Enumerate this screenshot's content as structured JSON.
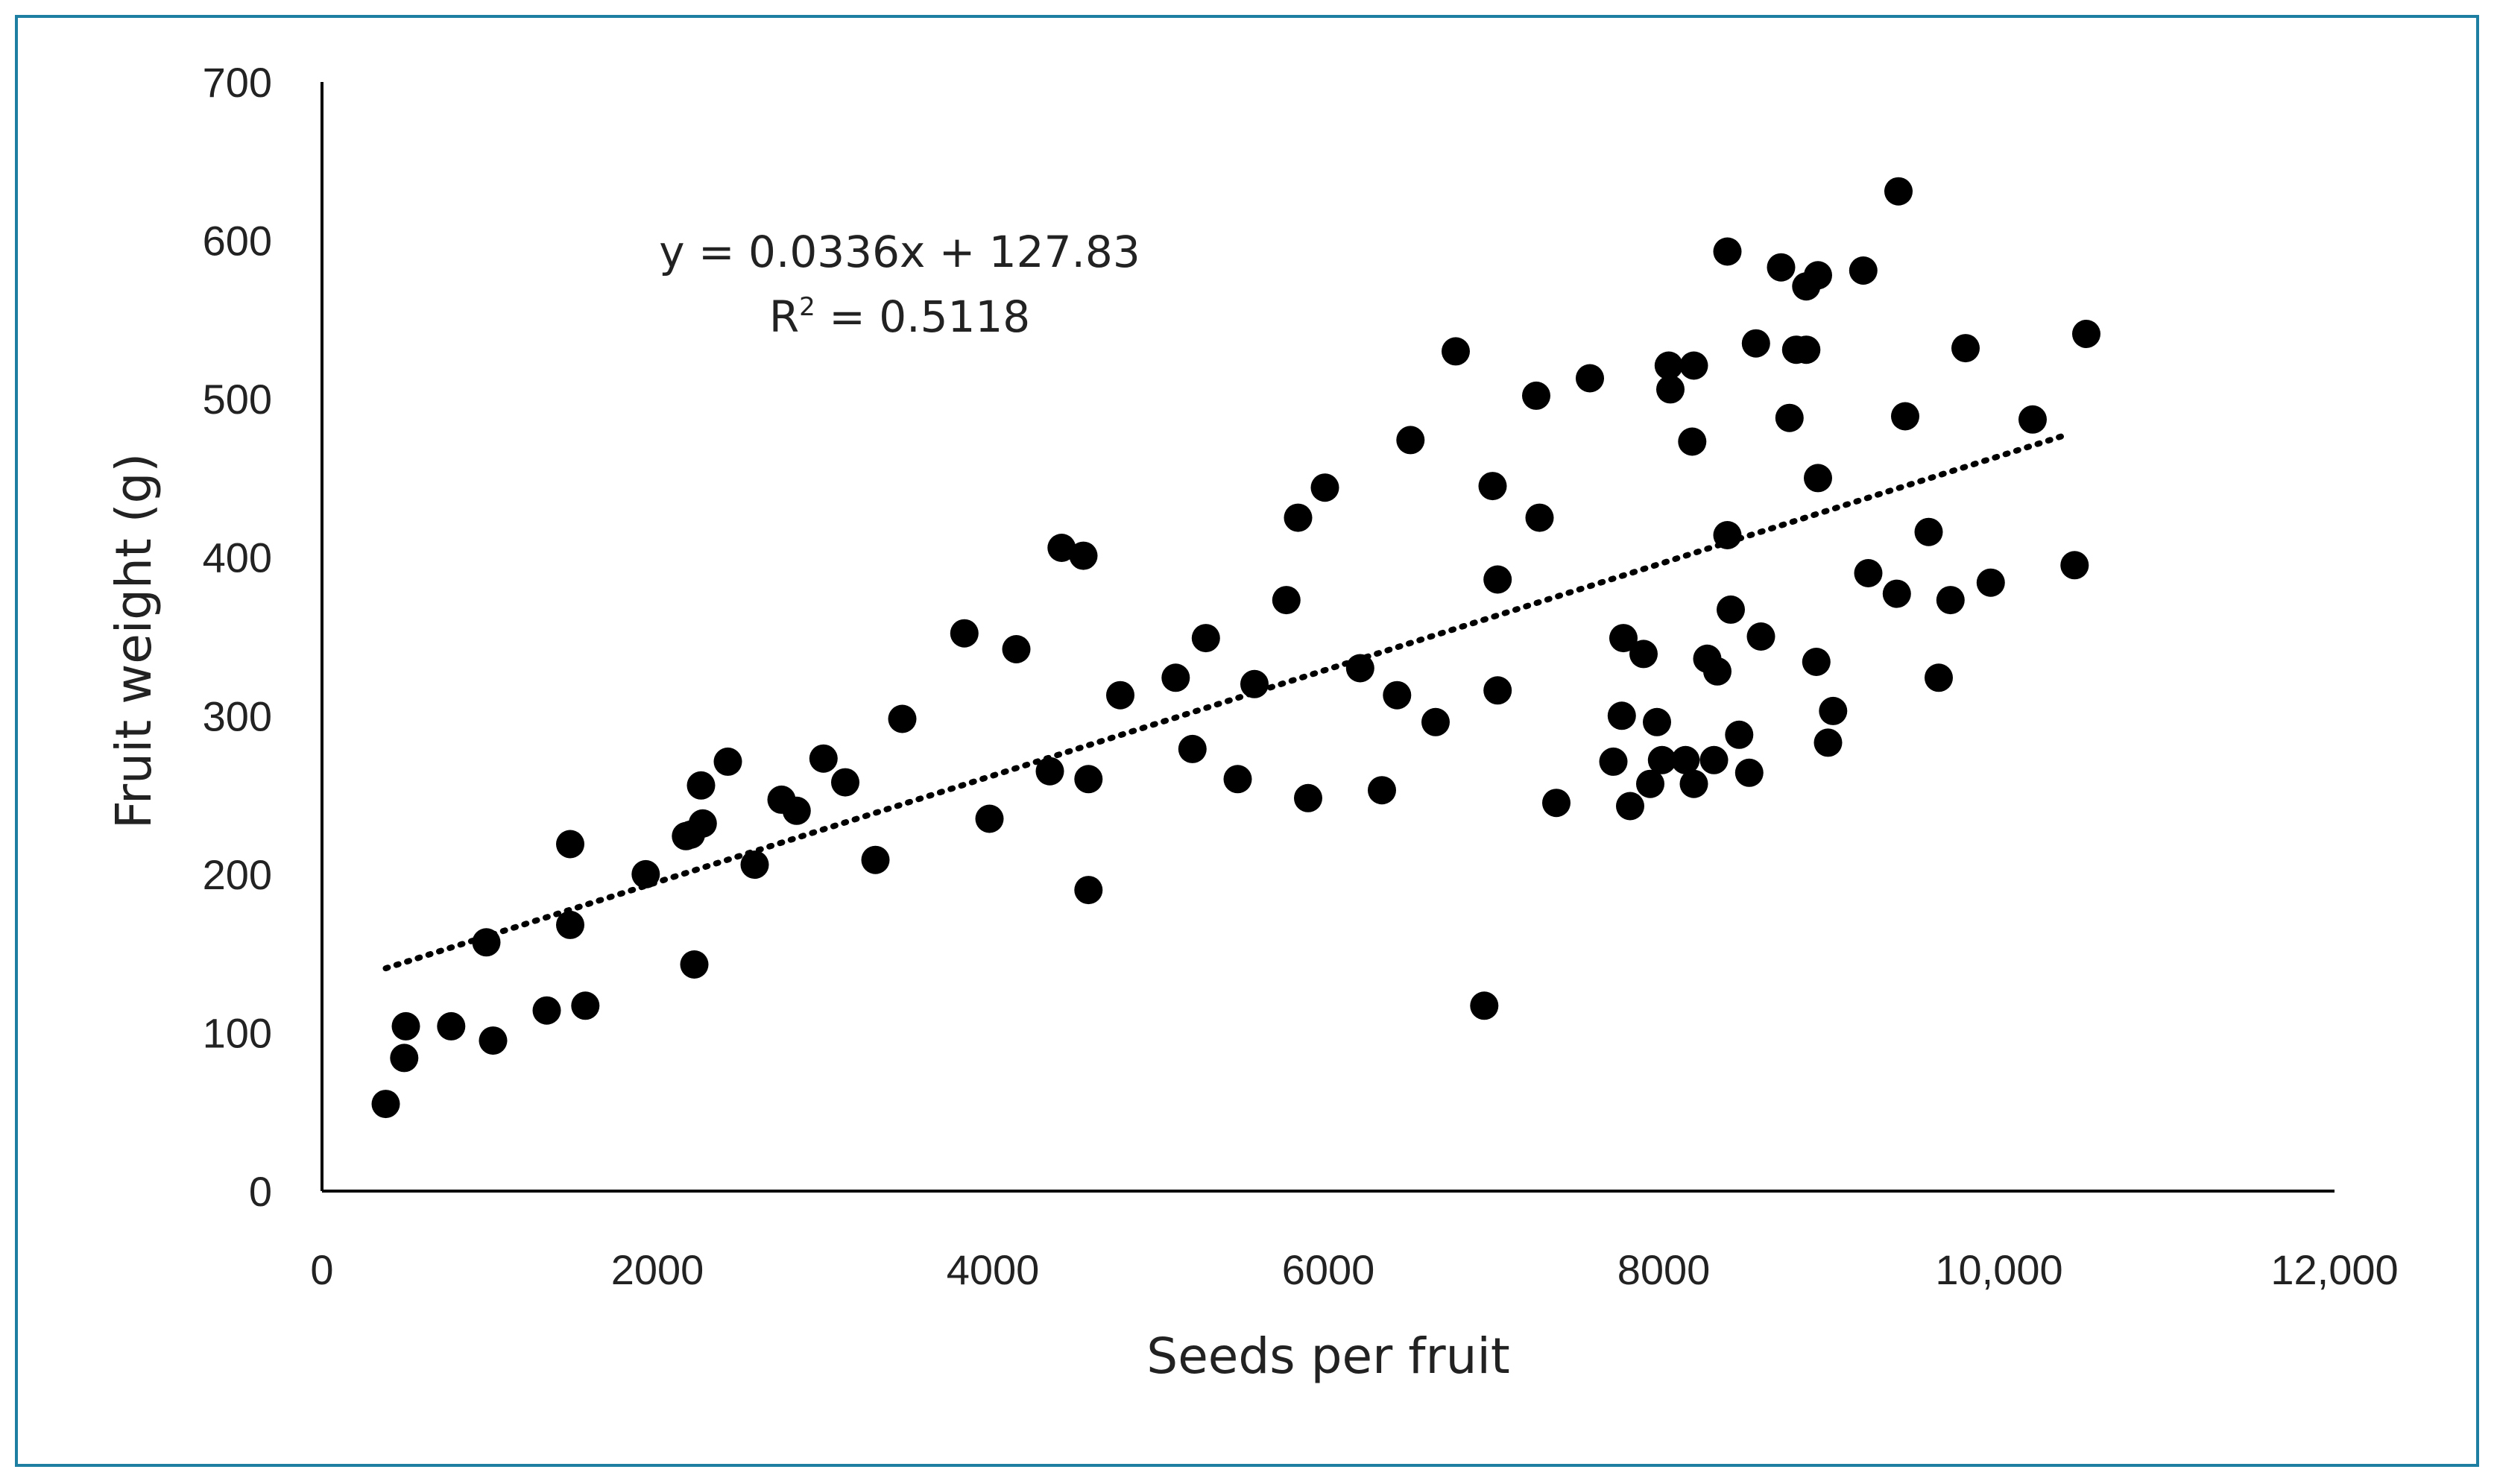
{
  "chart_data": {
    "type": "scatter",
    "title": "",
    "xlabel": "Seeds per fruit",
    "ylabel": "Fruit weight (g)",
    "xlim": [
      0,
      12000
    ],
    "ylim": [
      0,
      700
    ],
    "x_ticks": [
      "0",
      "2000",
      "4000",
      "6000",
      "8000",
      "10,000",
      "12,000"
    ],
    "x_tick_values": [
      0,
      2000,
      4000,
      6000,
      8000,
      10000,
      12000
    ],
    "y_ticks": [
      "0",
      "100",
      "200",
      "300",
      "400",
      "500",
      "600",
      "700"
    ],
    "y_tick_values": [
      0,
      100,
      200,
      300,
      400,
      500,
      600,
      700
    ],
    "grid": false,
    "marker_color": "#000000",
    "trendline": {
      "style": "dotted",
      "slope": 0.0336,
      "intercept": 127.83,
      "x_range": [
        380,
        10380
      ],
      "equation": "y = 0.0336x + 127.83",
      "r2_prefix": "R",
      "r2_sup": "2",
      "r2_value": " = 0.5118"
    },
    "points": [
      [
        380,
        55
      ],
      [
        490,
        84
      ],
      [
        500,
        104
      ],
      [
        770,
        104
      ],
      [
        980,
        157
      ],
      [
        1020,
        95
      ],
      [
        1340,
        114
      ],
      [
        1480,
        219
      ],
      [
        1480,
        168
      ],
      [
        1570,
        117
      ],
      [
        1930,
        200
      ],
      [
        2170,
        224
      ],
      [
        2200,
        225
      ],
      [
        2220,
        143
      ],
      [
        2260,
        256
      ],
      [
        2270,
        232
      ],
      [
        2420,
        271
      ],
      [
        2580,
        206
      ],
      [
        2740,
        247
      ],
      [
        2830,
        240
      ],
      [
        2990,
        273
      ],
      [
        3120,
        258
      ],
      [
        3300,
        209
      ],
      [
        3460,
        298
      ],
      [
        3830,
        352
      ],
      [
        3980,
        235
      ],
      [
        4140,
        342
      ],
      [
        4340,
        265
      ],
      [
        4410,
        406
      ],
      [
        4540,
        401
      ],
      [
        4570,
        260
      ],
      [
        4570,
        190
      ],
      [
        4760,
        313
      ],
      [
        5090,
        324
      ],
      [
        5190,
        279
      ],
      [
        5270,
        349
      ],
      [
        5460,
        260
      ],
      [
        5560,
        320
      ],
      [
        5750,
        373
      ],
      [
        5820,
        425
      ],
      [
        5880,
        248
      ],
      [
        5980,
        444
      ],
      [
        6190,
        330
      ],
      [
        6320,
        253
      ],
      [
        6410,
        313
      ],
      [
        6490,
        474
      ],
      [
        6640,
        296
      ],
      [
        6760,
        530
      ],
      [
        6930,
        117
      ],
      [
        6980,
        445
      ],
      [
        7010,
        386
      ],
      [
        7010,
        316
      ],
      [
        7240,
        502
      ],
      [
        7260,
        425
      ],
      [
        7360,
        245
      ],
      [
        7560,
        513
      ],
      [
        7700,
        271
      ],
      [
        7750,
        300
      ],
      [
        7760,
        349
      ],
      [
        7800,
        243
      ],
      [
        7880,
        339
      ],
      [
        7920,
        257
      ],
      [
        7960,
        296
      ],
      [
        7990,
        272
      ],
      [
        8030,
        521
      ],
      [
        8040,
        506
      ],
      [
        8130,
        272
      ],
      [
        8170,
        473
      ],
      [
        8180,
        521
      ],
      [
        8180,
        257
      ],
      [
        8260,
        336
      ],
      [
        8300,
        272
      ],
      [
        8320,
        328
      ],
      [
        8380,
        593
      ],
      [
        8380,
        414
      ],
      [
        8400,
        367
      ],
      [
        8450,
        288
      ],
      [
        8510,
        264
      ],
      [
        8550,
        535
      ],
      [
        8580,
        350
      ],
      [
        8700,
        583
      ],
      [
        8750,
        488
      ],
      [
        8790,
        531
      ],
      [
        8850,
        571
      ],
      [
        8850,
        531
      ],
      [
        8910,
        334
      ],
      [
        8920,
        578
      ],
      [
        8920,
        450
      ],
      [
        8980,
        283
      ],
      [
        9010,
        303
      ],
      [
        9190,
        581
      ],
      [
        9220,
        390
      ],
      [
        9390,
        377
      ],
      [
        9400,
        631
      ],
      [
        9440,
        489
      ],
      [
        9580,
        416
      ],
      [
        9640,
        324
      ],
      [
        9710,
        373
      ],
      [
        9800,
        532
      ],
      [
        9950,
        384
      ],
      [
        10200,
        487
      ],
      [
        10450,
        395
      ],
      [
        10520,
        541
      ]
    ]
  }
}
